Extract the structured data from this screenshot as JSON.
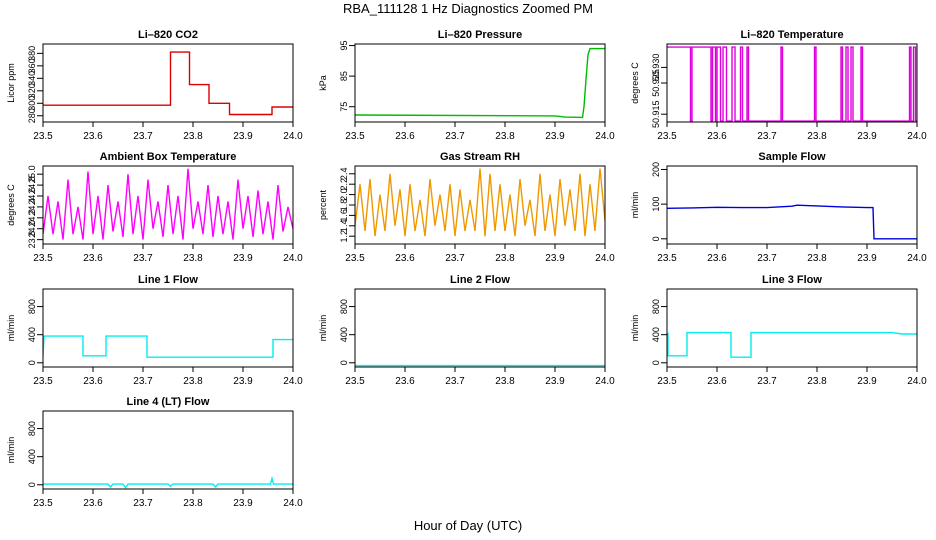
{
  "title": "RBA_111128  1 Hz Diagnostics Zoomed PM",
  "xlabel": "Hour of Day (UTC)",
  "chart_data": [
    {
      "type": "line",
      "title": "Li–820 CO2",
      "ylabel": "Licor ppm",
      "color": "#dd0000",
      "xlim": [
        23.5,
        24.0
      ],
      "ylim": [
        270,
        395
      ],
      "xticks": [
        {
          "v": 23.5,
          "label": "23.5"
        },
        {
          "v": 23.6,
          "label": "23.6"
        },
        {
          "v": 23.7,
          "label": "23.7"
        },
        {
          "v": 23.8,
          "label": "23.8"
        },
        {
          "v": 23.9,
          "label": "23.9"
        },
        {
          "v": 24.0,
          "label": "24.0"
        }
      ],
      "yticks": [
        {
          "v": 280,
          "label": "280"
        },
        {
          "v": 300,
          "label": "300"
        },
        {
          "v": 320,
          "label": "320"
        },
        {
          "v": 340,
          "label": "340"
        },
        {
          "v": 360,
          "label": "360"
        },
        {
          "v": 380,
          "label": "380"
        }
      ],
      "series": [
        {
          "x": [
            23.5,
            23.755,
            23.755,
            23.793,
            23.793,
            23.832,
            23.832,
            23.873,
            23.873,
            23.958,
            23.958,
            24.0
          ],
          "y": [
            297,
            297,
            382,
            382,
            330,
            330,
            300,
            300,
            282,
            282,
            294,
            294
          ]
        }
      ]
    },
    {
      "type": "line",
      "title": "Li–820 Pressure",
      "ylabel": "kPa",
      "color": "#00bb00",
      "xlim": [
        23.5,
        24.0
      ],
      "ylim": [
        70,
        95.5
      ],
      "xticks": [
        {
          "v": 23.5,
          "label": "23.5"
        },
        {
          "v": 23.6,
          "label": "23.6"
        },
        {
          "v": 23.7,
          "label": "23.7"
        },
        {
          "v": 23.8,
          "label": "23.8"
        },
        {
          "v": 23.9,
          "label": "23.9"
        },
        {
          "v": 24.0,
          "label": "24.0"
        }
      ],
      "yticks": [
        {
          "v": 75,
          "label": "75"
        },
        {
          "v": 85,
          "label": "85"
        },
        {
          "v": 95,
          "label": "95"
        }
      ],
      "series": [
        {
          "x": [
            23.5,
            23.9,
            23.92,
            23.955,
            23.958,
            23.962,
            23.966,
            23.97,
            24.0
          ],
          "y": [
            72.3,
            72.0,
            71.6,
            71.5,
            75.0,
            84.0,
            92.0,
            94.0,
            94.0
          ]
        }
      ]
    },
    {
      "type": "line",
      "title": "Li–820 Temperature",
      "ylabel": "degrees C",
      "color": "#dd00dd",
      "xlim": [
        23.5,
        24.0
      ],
      "ylim": [
        50.9125,
        50.9375
      ],
      "xticks": [
        {
          "v": 23.5,
          "label": "23.5"
        },
        {
          "v": 23.6,
          "label": "23.6"
        },
        {
          "v": 23.7,
          "label": "23.7"
        },
        {
          "v": 23.8,
          "label": "23.8"
        },
        {
          "v": 23.9,
          "label": "23.9"
        },
        {
          "v": 24.0,
          "label": "24.0"
        }
      ],
      "yticks": [
        {
          "v": 50.915,
          "label": "50.915"
        },
        {
          "v": 50.925,
          "label": "50.925"
        },
        {
          "v": 50.93,
          "label": "50.930"
        }
      ],
      "series": [
        {
          "x": [
            23.5,
            23.547,
            23.547,
            23.55,
            23.55,
            23.588,
            23.588,
            23.591,
            23.591,
            23.597,
            23.597,
            23.6,
            23.6,
            23.607,
            23.607,
            23.612,
            23.612,
            23.619,
            23.619,
            23.63,
            23.63,
            23.636,
            23.636,
            23.647,
            23.647,
            23.651,
            23.651,
            23.66,
            23.66,
            23.663,
            23.663,
            23.728,
            23.728,
            23.731,
            23.731,
            23.795,
            23.795,
            23.798,
            23.798,
            23.848,
            23.848,
            23.851,
            23.851,
            23.858,
            23.858,
            23.862,
            23.862,
            23.868,
            23.868,
            23.872,
            23.872,
            23.888,
            23.888,
            23.891,
            23.891,
            23.985,
            23.985,
            23.988,
            23.988,
            23.993,
            23.993,
            23.997,
            23.997,
            24.0
          ],
          "y": [
            50.9365,
            50.9365,
            50.9128,
            50.9128,
            50.9365,
            50.9365,
            50.9128,
            50.9128,
            50.9365,
            50.9365,
            50.9128,
            50.9128,
            50.9365,
            50.9365,
            50.9128,
            50.9128,
            50.9365,
            50.9365,
            50.9128,
            50.9128,
            50.9365,
            50.9365,
            50.9128,
            50.9128,
            50.9365,
            50.9365,
            50.9128,
            50.9128,
            50.9365,
            50.9365,
            50.9128,
            50.9128,
            50.9365,
            50.9365,
            50.9128,
            50.9128,
            50.9365,
            50.9365,
            50.9128,
            50.9128,
            50.9365,
            50.9365,
            50.9128,
            50.9128,
            50.9365,
            50.9365,
            50.9128,
            50.9128,
            50.9365,
            50.9365,
            50.9128,
            50.9128,
            50.9365,
            50.9365,
            50.9128,
            50.9128,
            50.9365,
            50.9365,
            50.9128,
            50.9128,
            50.9365,
            50.9365,
            50.9128,
            50.9128
          ]
        }
      ]
    },
    {
      "type": "line",
      "title": "Ambient Box Temperature",
      "ylabel": "degrees C",
      "color": "#ff00ff",
      "xlim": [
        23.5,
        24.0
      ],
      "ylim": [
        23.72,
        25.15
      ],
      "xticks": [
        {
          "v": 23.5,
          "label": "23.5"
        },
        {
          "v": 23.6,
          "label": "23.6"
        },
        {
          "v": 23.7,
          "label": "23.7"
        },
        {
          "v": 23.8,
          "label": "23.8"
        },
        {
          "v": 23.9,
          "label": "23.9"
        },
        {
          "v": 24.0,
          "label": "24.0"
        }
      ],
      "yticks": [
        {
          "v": 23.8,
          "label": "23.8"
        },
        {
          "v": 24.0,
          "label": "24.0"
        },
        {
          "v": 24.2,
          "label": "24.2"
        },
        {
          "v": 24.4,
          "label": "24.4"
        },
        {
          "v": 24.6,
          "label": "24.6"
        },
        {
          "v": 24.8,
          "label": "24.8"
        },
        {
          "v": 25.0,
          "label": "25.0"
        }
      ],
      "series": [
        {
          "x": [
            23.5,
            23.51,
            23.52,
            23.53,
            23.54,
            23.55,
            23.56,
            23.57,
            23.58,
            23.59,
            23.6,
            23.61,
            23.62,
            23.63,
            23.64,
            23.65,
            23.66,
            23.67,
            23.68,
            23.69,
            23.7,
            23.71,
            23.72,
            23.73,
            23.74,
            23.75,
            23.76,
            23.77,
            23.78,
            23.79,
            23.8,
            23.81,
            23.82,
            23.83,
            23.84,
            23.85,
            23.86,
            23.87,
            23.88,
            23.89,
            23.9,
            23.91,
            23.92,
            23.93,
            23.94,
            23.95,
            23.96,
            23.97,
            23.98,
            23.99,
            24.0
          ],
          "y": [
            23.9,
            24.6,
            23.9,
            24.5,
            23.8,
            24.9,
            23.9,
            24.4,
            23.8,
            25.05,
            23.9,
            24.6,
            23.8,
            24.8,
            23.95,
            24.5,
            23.85,
            25.0,
            23.9,
            24.6,
            23.8,
            24.9,
            24.0,
            24.5,
            23.85,
            24.8,
            23.9,
            24.6,
            23.8,
            25.1,
            24.0,
            24.5,
            23.9,
            24.8,
            23.85,
            24.6,
            23.9,
            24.5,
            23.8,
            24.9,
            24.0,
            24.6,
            23.85,
            24.7,
            23.9,
            24.5,
            23.8,
            24.8,
            23.95,
            24.4,
            24.0
          ]
        }
      ]
    },
    {
      "type": "line",
      "title": "Gas Stream RH",
      "ylabel": "percent",
      "color": "#ee9900",
      "xlim": [
        23.5,
        24.0
      ],
      "ylim": [
        1.05,
        2.55
      ],
      "xticks": [
        {
          "v": 23.5,
          "label": "23.5"
        },
        {
          "v": 23.6,
          "label": "23.6"
        },
        {
          "v": 23.7,
          "label": "23.7"
        },
        {
          "v": 23.8,
          "label": "23.8"
        },
        {
          "v": 23.9,
          "label": "23.9"
        },
        {
          "v": 24.0,
          "label": "24.0"
        }
      ],
      "yticks": [
        {
          "v": 1.2,
          "label": "1.2"
        },
        {
          "v": 1.4,
          "label": "1.4"
        },
        {
          "v": 1.6,
          "label": "1.6"
        },
        {
          "v": 1.8,
          "label": "1.8"
        },
        {
          "v": 2.0,
          "label": "2.0"
        },
        {
          "v": 2.2,
          "label": "2.2"
        },
        {
          "v": 2.4,
          "label": "2.4"
        }
      ],
      "series": [
        {
          "x": [
            23.5,
            23.51,
            23.52,
            23.53,
            23.54,
            23.55,
            23.56,
            23.57,
            23.58,
            23.59,
            23.6,
            23.61,
            23.62,
            23.63,
            23.64,
            23.65,
            23.66,
            23.67,
            23.68,
            23.69,
            23.7,
            23.71,
            23.72,
            23.73,
            23.74,
            23.75,
            23.76,
            23.77,
            23.78,
            23.79,
            23.8,
            23.81,
            23.82,
            23.83,
            23.84,
            23.85,
            23.86,
            23.87,
            23.88,
            23.89,
            23.9,
            23.91,
            23.92,
            23.93,
            23.94,
            23.95,
            23.96,
            23.97,
            23.98,
            23.99,
            24.0
          ],
          "y": [
            1.4,
            2.2,
            1.3,
            2.3,
            1.2,
            2.0,
            1.3,
            2.4,
            1.4,
            2.1,
            1.2,
            2.2,
            1.3,
            1.9,
            1.2,
            2.3,
            1.4,
            2.0,
            1.3,
            2.2,
            1.2,
            2.1,
            1.3,
            1.9,
            1.3,
            2.5,
            1.2,
            2.4,
            1.3,
            2.2,
            1.3,
            2.0,
            1.2,
            2.3,
            1.4,
            1.9,
            1.2,
            2.4,
            1.3,
            2.0,
            1.2,
            2.3,
            1.4,
            2.1,
            1.3,
            2.4,
            1.2,
            2.2,
            1.3,
            2.5,
            1.5
          ]
        }
      ]
    },
    {
      "type": "line",
      "title": "Sample Flow",
      "ylabel": "ml/min",
      "color": "#0000dd",
      "xlim": [
        23.5,
        24.0
      ],
      "ylim": [
        -15,
        210
      ],
      "xticks": [
        {
          "v": 23.5,
          "label": "23.5"
        },
        {
          "v": 23.6,
          "label": "23.6"
        },
        {
          "v": 23.7,
          "label": "23.7"
        },
        {
          "v": 23.8,
          "label": "23.8"
        },
        {
          "v": 23.9,
          "label": "23.9"
        },
        {
          "v": 24.0,
          "label": "24.0"
        }
      ],
      "yticks": [
        {
          "v": 0,
          "label": "0"
        },
        {
          "v": 100,
          "label": "100"
        },
        {
          "v": 200,
          "label": "200"
        }
      ],
      "series": [
        {
          "x": [
            23.5,
            23.55,
            23.6,
            23.65,
            23.7,
            23.75,
            23.76,
            23.8,
            23.85,
            23.9,
            23.912,
            23.914,
            23.95,
            24.0
          ],
          "y": [
            88,
            89,
            91,
            90,
            90,
            94,
            97,
            95,
            92,
            90,
            90,
            0,
            0,
            0
          ]
        }
      ]
    },
    {
      "type": "line",
      "title": "Line 1 Flow",
      "ylabel": "ml/min",
      "color": "#00eeee",
      "xlim": [
        23.5,
        24.0
      ],
      "ylim": [
        -60,
        1050
      ],
      "xticks": [
        {
          "v": 23.5,
          "label": "23.5"
        },
        {
          "v": 23.6,
          "label": "23.6"
        },
        {
          "v": 23.7,
          "label": "23.7"
        },
        {
          "v": 23.8,
          "label": "23.8"
        },
        {
          "v": 23.9,
          "label": "23.9"
        },
        {
          "v": 24.0,
          "label": "24.0"
        }
      ],
      "yticks": [
        {
          "v": 0,
          "label": "0"
        },
        {
          "v": 400,
          "label": "400"
        },
        {
          "v": 800,
          "label": "800"
        }
      ],
      "series": [
        {
          "x": [
            23.5,
            23.502,
            23.58,
            23.58,
            23.626,
            23.626,
            23.708,
            23.708,
            23.96,
            23.96,
            24.0
          ],
          "y": [
            100,
            380,
            380,
            100,
            100,
            380,
            380,
            80,
            80,
            330,
            330
          ]
        }
      ]
    },
    {
      "type": "line",
      "title": "Line 2 Flow",
      "ylabel": "ml/min",
      "color": "#00eeee",
      "xlim": [
        23.5,
        24.0
      ],
      "ylim": [
        -60,
        1050
      ],
      "xticks": [
        {
          "v": 23.5,
          "label": "23.5"
        },
        {
          "v": 23.6,
          "label": "23.6"
        },
        {
          "v": 23.7,
          "label": "23.7"
        },
        {
          "v": 23.8,
          "label": "23.8"
        },
        {
          "v": 23.9,
          "label": "23.9"
        },
        {
          "v": 24.0,
          "label": "24.0"
        }
      ],
      "yticks": [
        {
          "v": 0,
          "label": "0"
        },
        {
          "v": 400,
          "label": "400"
        },
        {
          "v": 800,
          "label": "800"
        }
      ],
      "series": [
        {
          "x": [
            23.5,
            24.0
          ],
          "y": [
            -40,
            -40
          ]
        }
      ]
    },
    {
      "type": "line",
      "title": "Line 3 Flow",
      "ylabel": "ml/min",
      "color": "#00eeee",
      "xlim": [
        23.5,
        24.0
      ],
      "ylim": [
        -60,
        1050
      ],
      "xticks": [
        {
          "v": 23.5,
          "label": "23.5"
        },
        {
          "v": 23.6,
          "label": "23.6"
        },
        {
          "v": 23.7,
          "label": "23.7"
        },
        {
          "v": 23.8,
          "label": "23.8"
        },
        {
          "v": 23.9,
          "label": "23.9"
        },
        {
          "v": 24.0,
          "label": "24.0"
        }
      ],
      "yticks": [
        {
          "v": 0,
          "label": "0"
        },
        {
          "v": 400,
          "label": "400"
        },
        {
          "v": 800,
          "label": "800"
        }
      ],
      "series": [
        {
          "x": [
            23.5,
            23.502,
            23.502,
            23.54,
            23.54,
            23.628,
            23.628,
            23.668,
            23.668,
            23.75,
            23.9,
            23.95,
            23.97,
            24.0
          ],
          "y": [
            420,
            420,
            100,
            100,
            430,
            430,
            80,
            80,
            430,
            430,
            430,
            430,
            410,
            410
          ]
        }
      ]
    },
    {
      "type": "line",
      "title": "Line 4 (LT) Flow",
      "ylabel": "ml/min",
      "color": "#00eeee",
      "xlim": [
        23.5,
        24.0
      ],
      "ylim": [
        -60,
        1050
      ],
      "xticks": [
        {
          "v": 23.5,
          "label": "23.5"
        },
        {
          "v": 23.6,
          "label": "23.6"
        },
        {
          "v": 23.7,
          "label": "23.7"
        },
        {
          "v": 23.8,
          "label": "23.8"
        },
        {
          "v": 23.9,
          "label": "23.9"
        },
        {
          "v": 24.0,
          "label": "24.0"
        }
      ],
      "yticks": [
        {
          "v": 0,
          "label": "0"
        },
        {
          "v": 400,
          "label": "400"
        },
        {
          "v": 800,
          "label": "800"
        }
      ],
      "series": [
        {
          "x": [
            23.5,
            23.63,
            23.635,
            23.64,
            23.66,
            23.665,
            23.67,
            23.75,
            23.755,
            23.76,
            23.84,
            23.845,
            23.85,
            23.955,
            23.958,
            23.961,
            24.0
          ],
          "y": [
            10,
            10,
            -30,
            10,
            10,
            -40,
            10,
            10,
            -20,
            10,
            10,
            -30,
            10,
            10,
            90,
            10,
            10
          ]
        }
      ]
    }
  ]
}
